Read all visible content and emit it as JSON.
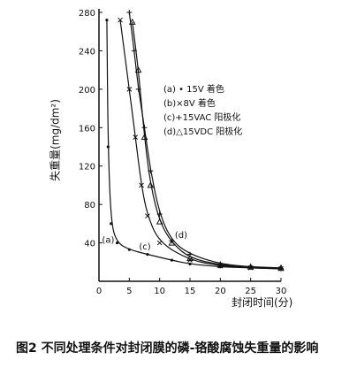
{
  "chart_data": {
    "type": "line",
    "title": "",
    "xlabel": "封闭时间(分)",
    "ylabel": "失重量(mg/dm²)",
    "xlim": [
      0,
      30
    ],
    "ylim": [
      0,
      280
    ],
    "x_ticks": [
      "0",
      "5",
      "10",
      "15",
      "20",
      "25",
      "30"
    ],
    "y_ticks": [
      "40",
      "80",
      "120",
      "160",
      "200",
      "240",
      "280"
    ],
    "legend": [
      "(a)  •  15V 着色",
      "(b)×8V 着色",
      "(c)+15VAC 阳极化",
      "(d)△15VDC 阳极化"
    ],
    "legend_position": "top-right",
    "series": [
      {
        "name": "(a)",
        "marker": "dot",
        "x": [
          1.3,
          1.5,
          2,
          3,
          5,
          8,
          12,
          15,
          20,
          25,
          30
        ],
        "y": [
          272,
          140,
          60,
          40,
          33,
          28,
          22,
          18,
          15,
          14,
          13
        ]
      },
      {
        "name": "(b)",
        "marker": "x",
        "x": [
          3.5,
          5,
          6,
          7,
          8,
          10,
          15,
          20,
          25,
          30
        ],
        "y": [
          272,
          200,
          150,
          100,
          68,
          40,
          22,
          16,
          14,
          13
        ]
      },
      {
        "name": "(c)",
        "marker": "plus",
        "x": [
          5,
          5.8,
          6.5,
          7.5,
          8.5,
          10,
          12,
          15,
          20,
          25,
          30
        ],
        "y": [
          280,
          240,
          200,
          160,
          115,
          70,
          42,
          28,
          18,
          15,
          13
        ]
      },
      {
        "name": "(d)",
        "marker": "triangle",
        "x": [
          5.5,
          6.5,
          7.5,
          8.5,
          10,
          12,
          15,
          20,
          25,
          30
        ],
        "y": [
          270,
          220,
          150,
          100,
          62,
          40,
          24,
          17,
          15,
          14
        ]
      }
    ],
    "curve_labels": [
      {
        "text": "(a)",
        "x": 0.5,
        "y": 40
      },
      {
        "text": "(c)",
        "x": 6.6,
        "y": 33
      },
      {
        "text": "(d)",
        "x": 12.5,
        "y": 45
      }
    ]
  },
  "caption": {
    "figure_no": "图2",
    "text": "不同处理条件对封闭膜的磷-铬酸腐蚀失重量的影响"
  }
}
